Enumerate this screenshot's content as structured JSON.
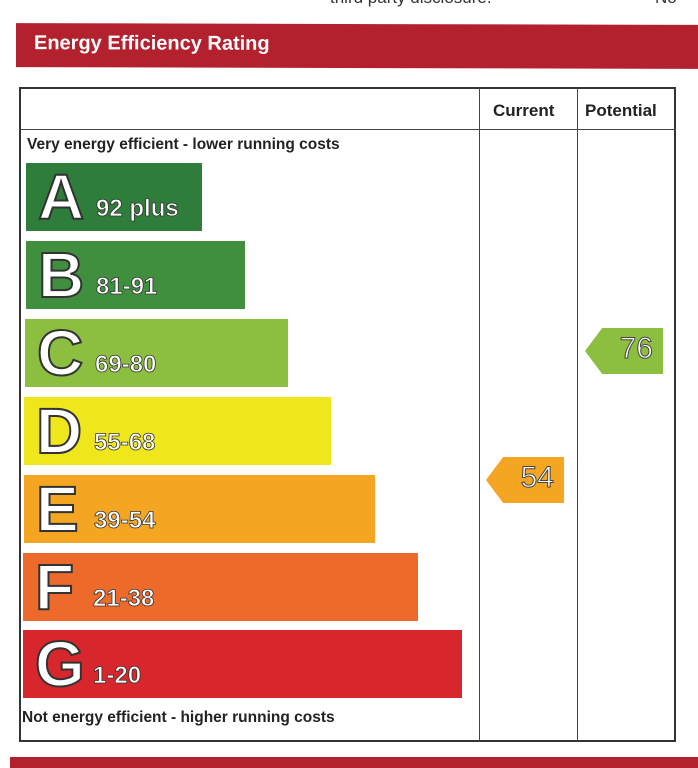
{
  "header": {
    "title": "Energy Efficiency Rating",
    "top_fragment_left": "third party disclosure.",
    "top_fragment_right": "No"
  },
  "columns": {
    "current": "Current",
    "potential": "Potential"
  },
  "captions": {
    "top": "Very energy efficient - lower running costs",
    "bottom": "Not energy efficient - higher running costs"
  },
  "bands": [
    {
      "letter": "A",
      "range": "92 plus",
      "color": "#2e7d3a"
    },
    {
      "letter": "B",
      "range": "81-91",
      "color": "#3f8f3f"
    },
    {
      "letter": "C",
      "range": "69-80",
      "color": "#8cbf3f"
    },
    {
      "letter": "D",
      "range": "55-68",
      "color": "#f0e61c"
    },
    {
      "letter": "E",
      "range": "39-54",
      "color": "#f4a623"
    },
    {
      "letter": "F",
      "range": "21-38",
      "color": "#ee6a2a"
    },
    {
      "letter": "G",
      "range": "1-20",
      "color": "#d7262c"
    }
  ],
  "ratings": {
    "current": {
      "value": "54",
      "band": "E",
      "color": "#f4a623"
    },
    "potential": {
      "value": "76",
      "band": "C",
      "color": "#8cbf3f"
    }
  },
  "brand_color": "#b3202e"
}
